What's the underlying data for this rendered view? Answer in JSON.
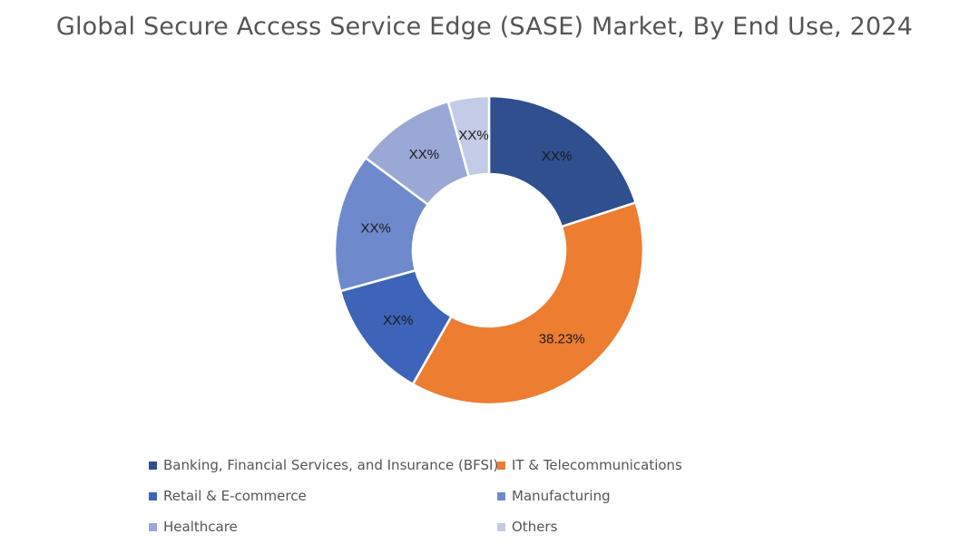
{
  "chart_data": {
    "type": "pie",
    "variant": "donut",
    "title": "Global Secure Access Service Edge (SASE) Market, By End Use, 2024",
    "legend_position": "bottom",
    "slices": [
      {
        "name": "Banking, Financial Services, and Insurance (BFSI)",
        "value": 20.0,
        "label": "XX%",
        "color": "#2f4f8f"
      },
      {
        "name": "IT & Telecommunications",
        "value": 38.23,
        "label": "38.23%",
        "color": "#ed7d31"
      },
      {
        "name": "Retail & E-commerce",
        "value": 12.5,
        "label": "XX%",
        "color": "#3d64b8"
      },
      {
        "name": "Manufacturing",
        "value": 14.5,
        "label": "XX%",
        "color": "#6e89cc"
      },
      {
        "name": "Healthcare",
        "value": 10.5,
        "label": "XX%",
        "color": "#9aa8d6"
      },
      {
        "name": "Others",
        "value": 4.27,
        "label": "XX%",
        "color": "#c4cbe6"
      }
    ]
  }
}
